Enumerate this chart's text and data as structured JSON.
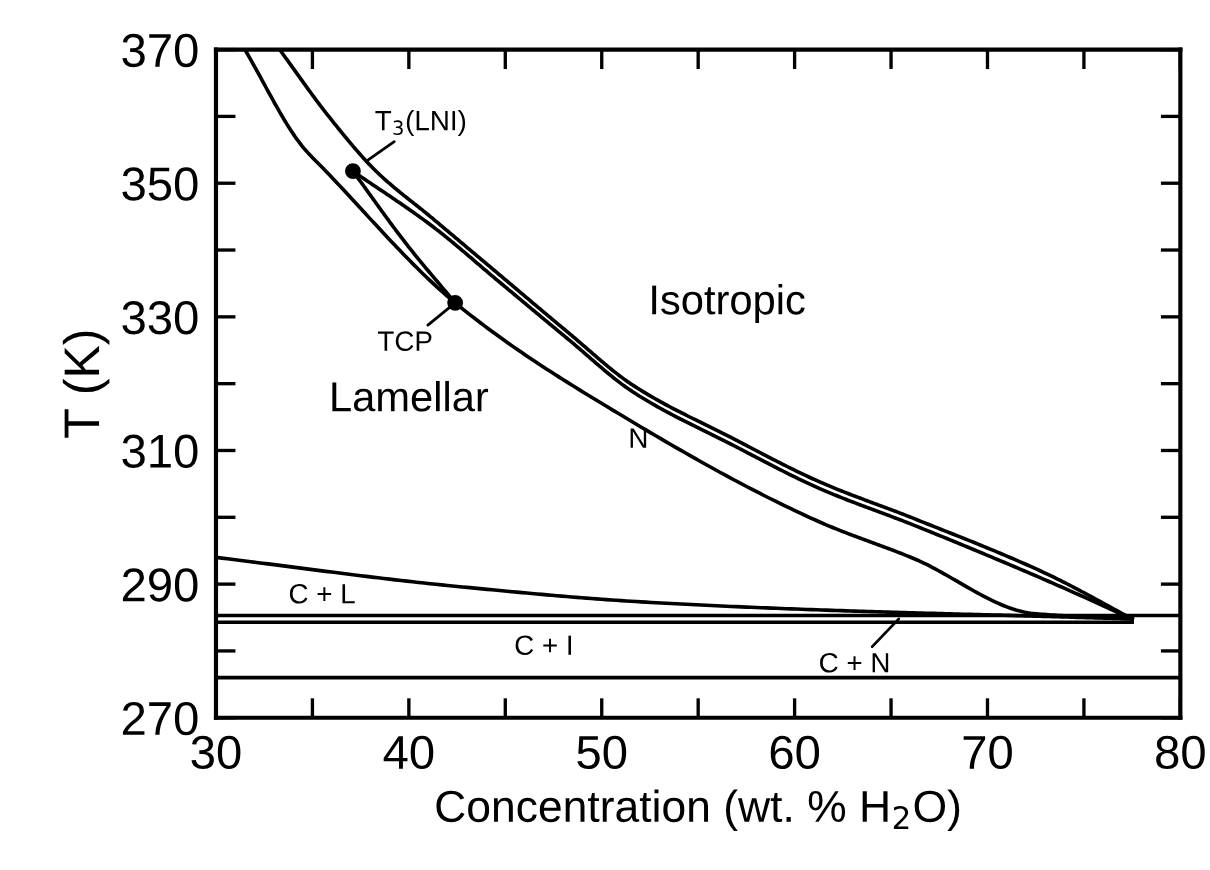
{
  "chart_data": {
    "type": "line",
    "xlabel": "Concentration (wt. % H$_{2}$O)",
    "ylabel": "T (K)",
    "xlim": [
      30,
      80
    ],
    "ylim": [
      270,
      370
    ],
    "xticks": [
      30,
      {
        "value": 35,
        "label": null
      },
      40,
      {
        "value": 45,
        "label": null
      },
      50,
      {
        "value": 55,
        "label": null
      },
      60,
      {
        "value": 65,
        "label": null
      },
      70,
      {
        "value": 75,
        "label": null
      },
      80
    ],
    "yticks": [
      270,
      {
        "value": 280,
        "label": null
      },
      290,
      {
        "value": 300,
        "label": null
      },
      310,
      {
        "value": 320,
        "label": null
      },
      330,
      {
        "value": 340,
        "label": null
      },
      350,
      {
        "value": 360,
        "label": null
      },
      370
    ],
    "grid": false,
    "legend": false,
    "marker": "none",
    "line_style": "solid",
    "series": [
      {
        "color": "#000000",
        "x": [
          33.3,
          35.9,
          38.3,
          41.2,
          44.7,
          48.2,
          51.6,
          56.8,
          61.3,
          66.2,
          73.1,
          77.5
        ],
        "values": [
          370,
          359.8,
          351.8,
          344.8,
          336.3,
          327.8,
          319.8,
          311.8,
          305.3,
          299.8,
          291.5,
          284.8
        ]
      },
      {
        "color": "#000000",
        "x": [
          37.1,
          41.2,
          44.7,
          48.2,
          51.6,
          56.8,
          61.3,
          66.2,
          73.1,
          77.5
        ],
        "values": [
          351.8,
          343.6,
          335.2,
          326.8,
          318.8,
          310.8,
          304.3,
          298.8,
          290.5,
          284.8
        ]
      },
      {
        "color": "#000000",
        "x": [
          31.5,
          34.4,
          35.7,
          42.4,
          51,
          61.3,
          66.2,
          72.4,
          77.5
        ],
        "values": [
          370,
          355.8,
          351.8,
          332.1,
          315.3,
          299.3,
          293.8,
          285.6,
          284.8
        ]
      },
      {
        "color": "#000000",
        "x": [
          37.1,
          39.9,
          42.4
        ],
        "values": [
          351.8,
          340.8,
          332.1
        ]
      },
      {
        "color": "#000000",
        "x": [
          30,
          42,
          52.3,
          62.7,
          71.3,
          77.5
        ],
        "values": [
          294,
          289.8,
          287.3,
          286,
          285.3,
          284.8
        ]
      },
      {
        "color": "#000000",
        "x": [
          30,
          80
        ],
        "values": [
          285.3,
          285.3
        ]
      },
      {
        "color": "#000000",
        "x": [
          30,
          77.5
        ],
        "values": [
          284.3,
          284.3
        ]
      },
      {
        "color": "#000000",
        "x": [
          30,
          80
        ],
        "values": [
          276,
          276
        ]
      },
      {
        "type": "scatter",
        "marker": "circle",
        "color": "#000000",
        "x": [
          37.1,
          42.4
        ],
        "values": [
          351.8,
          332.1
        ]
      }
    ],
    "annotations": [
      {
        "text": "T$_{3}$(LNI)",
        "x": 37.8,
        "y": 353.3
      },
      {
        "text": "TCP",
        "x": 42.4,
        "y": 332.1
      },
      "Isotropic",
      "Lamellar",
      "N",
      "C + L",
      "C + I",
      {
        "text": "C + N",
        "x": 65.4,
        "y": 284.8
      }
    ]
  }
}
